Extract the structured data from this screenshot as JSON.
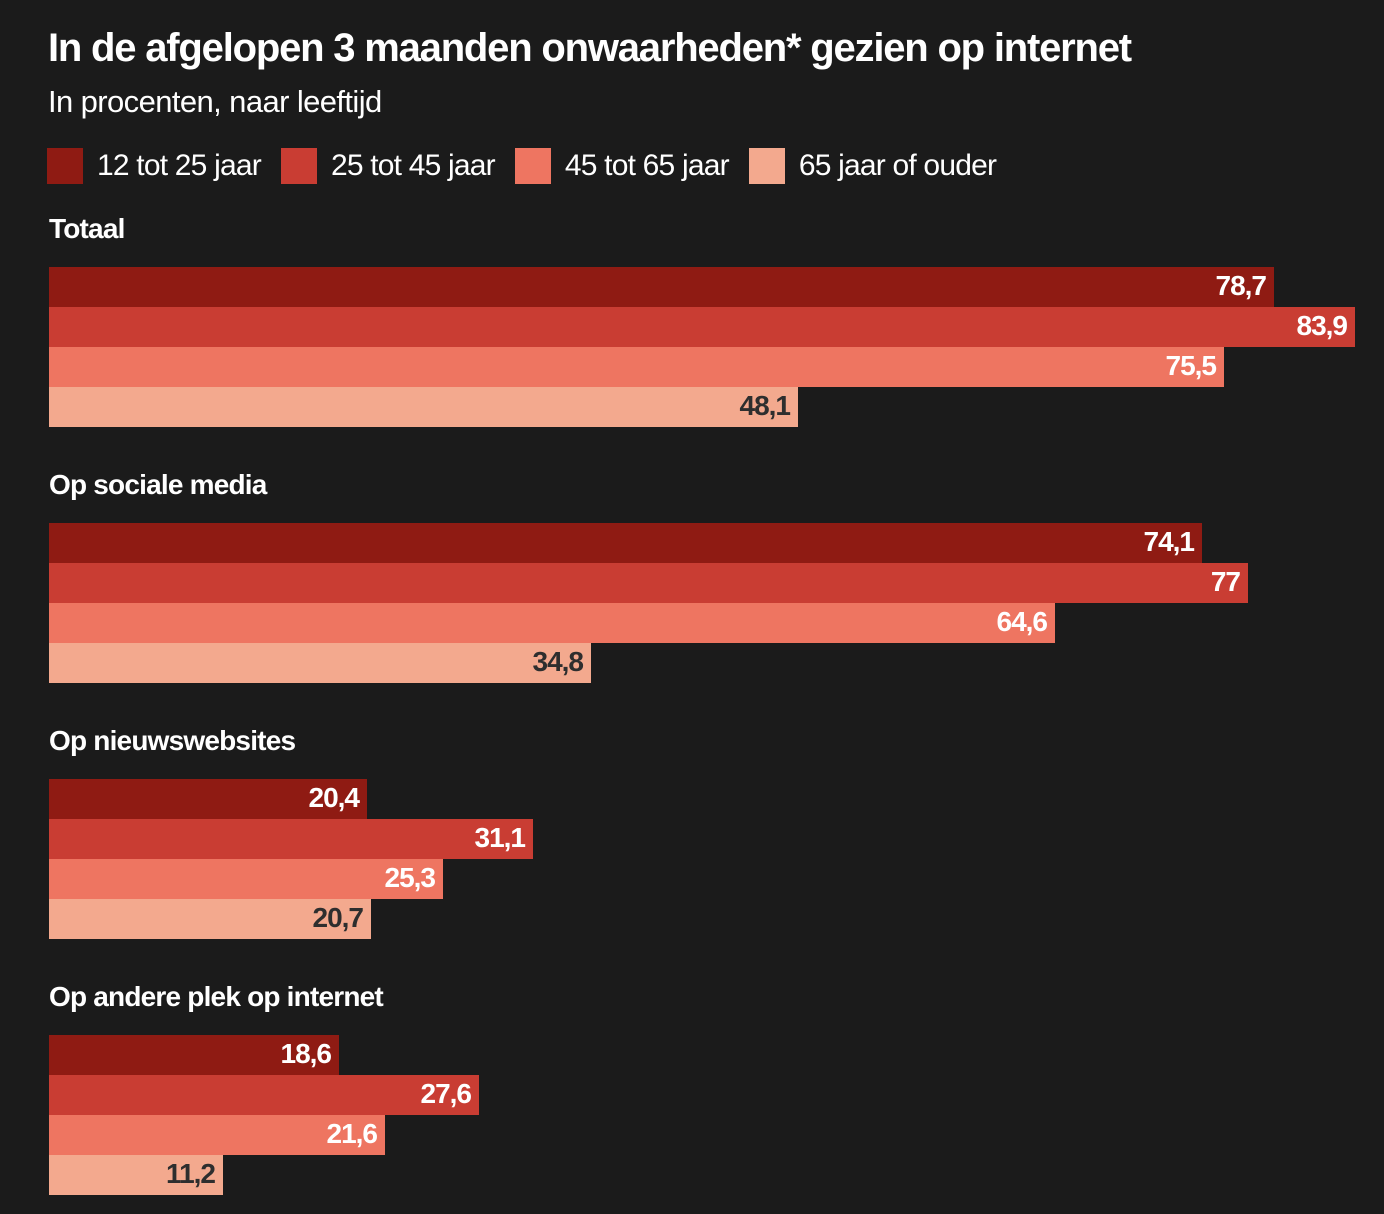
{
  "header": {
    "title": "In de afgelopen 3 maanden onwaarheden* gezien op internet",
    "subtitle": "In procenten, naar leeftijd"
  },
  "chart_data": {
    "type": "bar",
    "orientation": "horizontal",
    "title": "In de afgelopen 3 maanden onwaarheden* gezien op internet",
    "subtitle": "In procenten, naar leeftijd",
    "xlabel": "",
    "ylabel": "",
    "xlim": [
      0,
      83.9
    ],
    "grid": false,
    "legend_position": "top-left",
    "categories": [
      "Totaal",
      "Op sociale media",
      "Op nieuwswebsites",
      "Op andere plek op internet"
    ],
    "series": [
      {
        "name": "12 tot 25 jaar",
        "color": "#8f1b13",
        "label_color": "#ffffff",
        "values": [
          78.7,
          74.1,
          20.4,
          18.6
        ],
        "labels": [
          "78,7",
          "74,1",
          "20,4",
          "18,6"
        ]
      },
      {
        "name": "25 tot 45 jaar",
        "color": "#c93d33",
        "label_color": "#ffffff",
        "values": [
          83.9,
          77,
          31.1,
          27.6
        ],
        "labels": [
          "83,9",
          "77",
          "31,1",
          "27,6"
        ]
      },
      {
        "name": "45 tot 65 jaar",
        "color": "#ee7561",
        "label_color": "#ffffff",
        "values": [
          75.5,
          64.6,
          25.3,
          21.6
        ],
        "labels": [
          "75,5",
          "64,6",
          "25,3",
          "21,6"
        ]
      },
      {
        "name": "65 jaar of ouder",
        "color": "#f3a98e",
        "label_color": "#2e2e2e",
        "values": [
          48.1,
          34.8,
          20.7,
          11.2
        ],
        "labels": [
          "48,1",
          "34,8",
          "20,7",
          "11,2"
        ]
      }
    ]
  }
}
